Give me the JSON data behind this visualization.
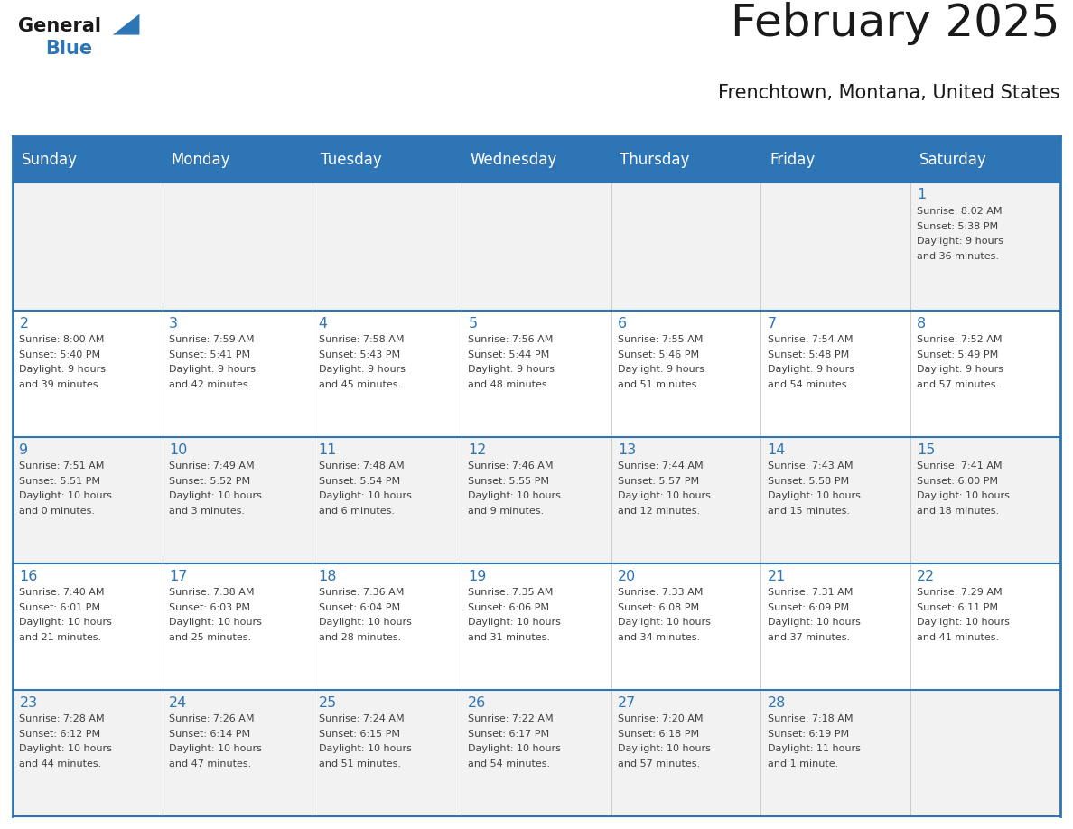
{
  "title": "February 2025",
  "subtitle": "Frenchtown, Montana, United States",
  "header_bg": "#2E75B6",
  "header_text_color": "#FFFFFF",
  "day_names": [
    "Sunday",
    "Monday",
    "Tuesday",
    "Wednesday",
    "Thursday",
    "Friday",
    "Saturday"
  ],
  "cell_bg": "#F2F2F2",
  "cell_bg_white": "#FFFFFF",
  "border_color": "#2E75B6",
  "day_number_color": "#2E75B6",
  "text_color": "#404040",
  "logo_general_color": "#1A1A1A",
  "logo_blue_color": "#2E75B6",
  "days": [
    {
      "date": 1,
      "col": 6,
      "row": 0,
      "sunrise": "8:02 AM",
      "sunset": "5:38 PM",
      "daylight": "9 hours",
      "daylight2": "and 36 minutes."
    },
    {
      "date": 2,
      "col": 0,
      "row": 1,
      "sunrise": "8:00 AM",
      "sunset": "5:40 PM",
      "daylight": "9 hours",
      "daylight2": "and 39 minutes."
    },
    {
      "date": 3,
      "col": 1,
      "row": 1,
      "sunrise": "7:59 AM",
      "sunset": "5:41 PM",
      "daylight": "9 hours",
      "daylight2": "and 42 minutes."
    },
    {
      "date": 4,
      "col": 2,
      "row": 1,
      "sunrise": "7:58 AM",
      "sunset": "5:43 PM",
      "daylight": "9 hours",
      "daylight2": "and 45 minutes."
    },
    {
      "date": 5,
      "col": 3,
      "row": 1,
      "sunrise": "7:56 AM",
      "sunset": "5:44 PM",
      "daylight": "9 hours",
      "daylight2": "and 48 minutes."
    },
    {
      "date": 6,
      "col": 4,
      "row": 1,
      "sunrise": "7:55 AM",
      "sunset": "5:46 PM",
      "daylight": "9 hours",
      "daylight2": "and 51 minutes."
    },
    {
      "date": 7,
      "col": 5,
      "row": 1,
      "sunrise": "7:54 AM",
      "sunset": "5:48 PM",
      "daylight": "9 hours",
      "daylight2": "and 54 minutes."
    },
    {
      "date": 8,
      "col": 6,
      "row": 1,
      "sunrise": "7:52 AM",
      "sunset": "5:49 PM",
      "daylight": "9 hours",
      "daylight2": "and 57 minutes."
    },
    {
      "date": 9,
      "col": 0,
      "row": 2,
      "sunrise": "7:51 AM",
      "sunset": "5:51 PM",
      "daylight": "10 hours",
      "daylight2": "and 0 minutes."
    },
    {
      "date": 10,
      "col": 1,
      "row": 2,
      "sunrise": "7:49 AM",
      "sunset": "5:52 PM",
      "daylight": "10 hours",
      "daylight2": "and 3 minutes."
    },
    {
      "date": 11,
      "col": 2,
      "row": 2,
      "sunrise": "7:48 AM",
      "sunset": "5:54 PM",
      "daylight": "10 hours",
      "daylight2": "and 6 minutes."
    },
    {
      "date": 12,
      "col": 3,
      "row": 2,
      "sunrise": "7:46 AM",
      "sunset": "5:55 PM",
      "daylight": "10 hours",
      "daylight2": "and 9 minutes."
    },
    {
      "date": 13,
      "col": 4,
      "row": 2,
      "sunrise": "7:44 AM",
      "sunset": "5:57 PM",
      "daylight": "10 hours",
      "daylight2": "and 12 minutes."
    },
    {
      "date": 14,
      "col": 5,
      "row": 2,
      "sunrise": "7:43 AM",
      "sunset": "5:58 PM",
      "daylight": "10 hours",
      "daylight2": "and 15 minutes."
    },
    {
      "date": 15,
      "col": 6,
      "row": 2,
      "sunrise": "7:41 AM",
      "sunset": "6:00 PM",
      "daylight": "10 hours",
      "daylight2": "and 18 minutes."
    },
    {
      "date": 16,
      "col": 0,
      "row": 3,
      "sunrise": "7:40 AM",
      "sunset": "6:01 PM",
      "daylight": "10 hours",
      "daylight2": "and 21 minutes."
    },
    {
      "date": 17,
      "col": 1,
      "row": 3,
      "sunrise": "7:38 AM",
      "sunset": "6:03 PM",
      "daylight": "10 hours",
      "daylight2": "and 25 minutes."
    },
    {
      "date": 18,
      "col": 2,
      "row": 3,
      "sunrise": "7:36 AM",
      "sunset": "6:04 PM",
      "daylight": "10 hours",
      "daylight2": "and 28 minutes."
    },
    {
      "date": 19,
      "col": 3,
      "row": 3,
      "sunrise": "7:35 AM",
      "sunset": "6:06 PM",
      "daylight": "10 hours",
      "daylight2": "and 31 minutes."
    },
    {
      "date": 20,
      "col": 4,
      "row": 3,
      "sunrise": "7:33 AM",
      "sunset": "6:08 PM",
      "daylight": "10 hours",
      "daylight2": "and 34 minutes."
    },
    {
      "date": 21,
      "col": 5,
      "row": 3,
      "sunrise": "7:31 AM",
      "sunset": "6:09 PM",
      "daylight": "10 hours",
      "daylight2": "and 37 minutes."
    },
    {
      "date": 22,
      "col": 6,
      "row": 3,
      "sunrise": "7:29 AM",
      "sunset": "6:11 PM",
      "daylight": "10 hours",
      "daylight2": "and 41 minutes."
    },
    {
      "date": 23,
      "col": 0,
      "row": 4,
      "sunrise": "7:28 AM",
      "sunset": "6:12 PM",
      "daylight": "10 hours",
      "daylight2": "and 44 minutes."
    },
    {
      "date": 24,
      "col": 1,
      "row": 4,
      "sunrise": "7:26 AM",
      "sunset": "6:14 PM",
      "daylight": "10 hours",
      "daylight2": "and 47 minutes."
    },
    {
      "date": 25,
      "col": 2,
      "row": 4,
      "sunrise": "7:24 AM",
      "sunset": "6:15 PM",
      "daylight": "10 hours",
      "daylight2": "and 51 minutes."
    },
    {
      "date": 26,
      "col": 3,
      "row": 4,
      "sunrise": "7:22 AM",
      "sunset": "6:17 PM",
      "daylight": "10 hours",
      "daylight2": "and 54 minutes."
    },
    {
      "date": 27,
      "col": 4,
      "row": 4,
      "sunrise": "7:20 AM",
      "sunset": "6:18 PM",
      "daylight": "10 hours",
      "daylight2": "and 57 minutes."
    },
    {
      "date": 28,
      "col": 5,
      "row": 4,
      "sunrise": "7:18 AM",
      "sunset": "6:19 PM",
      "daylight": "11 hours",
      "daylight2": "and 1 minute."
    }
  ]
}
